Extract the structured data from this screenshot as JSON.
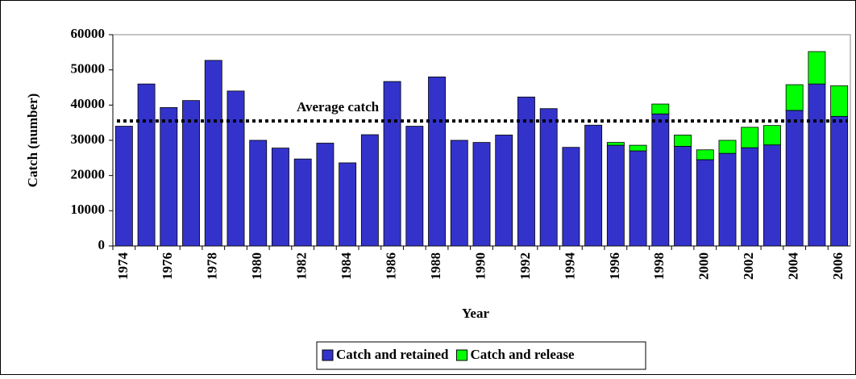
{
  "chart_data": {
    "type": "stacked_bar",
    "x_label": "Year",
    "y_label": "Catch (number)",
    "categories": [
      "1974",
      null,
      "1976",
      null,
      "1978",
      null,
      "1980",
      null,
      "1982",
      null,
      "1984",
      null,
      "1986",
      null,
      "1988",
      null,
      "1990",
      null,
      "1992",
      null,
      "1994",
      null,
      "1996",
      null,
      "1998",
      null,
      "2000",
      null,
      "2002",
      null,
      "2004",
      null,
      "2006"
    ],
    "series": [
      {
        "name": "Catch and retained",
        "color": "#3333cc",
        "values": [
          34000,
          46000,
          39300,
          41300,
          52700,
          44000,
          30000,
          27800,
          24700,
          29200,
          23600,
          31600,
          46700,
          34000,
          48000,
          30000,
          29400,
          31500,
          42300,
          39000,
          28000,
          34300,
          28600,
          27000,
          37500,
          28300,
          24500,
          26300,
          27900,
          28700,
          38500,
          46000,
          36800
        ]
      },
      {
        "name": "Catch and release",
        "color": "#00ff00",
        "values": [
          0,
          0,
          0,
          0,
          0,
          0,
          0,
          0,
          0,
          0,
          0,
          0,
          0,
          0,
          0,
          0,
          0,
          0,
          0,
          0,
          0,
          0,
          800,
          1600,
          2800,
          3200,
          2800,
          3700,
          5800,
          5500,
          7300,
          9200,
          8700
        ]
      }
    ],
    "average": {
      "label": "Average catch",
      "value": 35500
    },
    "ylim": [
      0,
      60000
    ],
    "yticks": [
      0,
      10000,
      20000,
      30000,
      40000,
      50000,
      60000
    ],
    "legend": "bottom"
  }
}
